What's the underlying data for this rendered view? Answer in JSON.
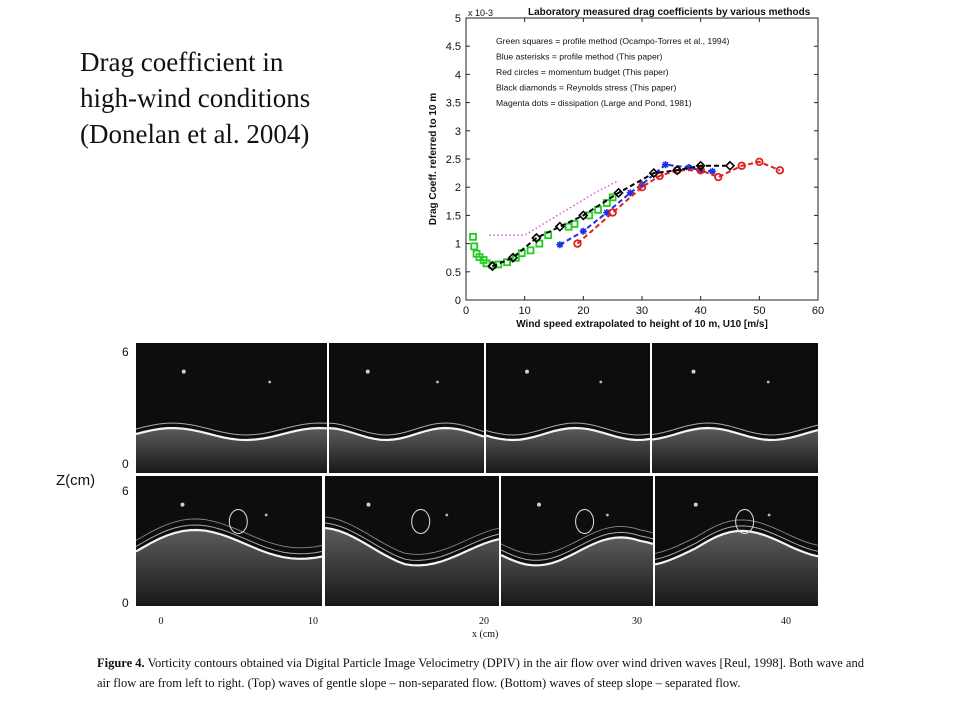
{
  "slide": {
    "title_lines": [
      "Drag coefficient in",
      "high-wind conditions",
      "(Donelan et al. 2004)"
    ]
  },
  "chart_data": {
    "type": "scatter",
    "title": "Laboratory measured drag coefficients by various methods",
    "xlabel": "Wind speed extrapolated to height of 10 m, U10 [m/s]",
    "ylabel": "Drag Coeff. referred to 10 m",
    "y_exponent": "x 10-3",
    "xlim": [
      0,
      60
    ],
    "ylim": [
      0,
      5
    ],
    "x_ticks": [
      0,
      10,
      20,
      30,
      40,
      50,
      60
    ],
    "y_ticks": [
      0,
      0.5,
      1,
      1.5,
      2,
      2.5,
      3,
      3.5,
      4,
      4.5,
      5
    ],
    "grid": false,
    "legend": [
      "Green squares  = profile method  (Ocampo-Torres et al., 1994)",
      "Blue asterisks = profile method  (This paper)",
      "Red circles  = momentum budget  (This paper)",
      "Black diamonds = Reynolds stress  (This paper)",
      "Magenta dots  = dissipation    (Large and Pond, 1981)"
    ],
    "series": [
      {
        "color": "#22cc22",
        "marker": "square",
        "line": false,
        "x": [
          1.2,
          1.4,
          1.8,
          2.3,
          3.0,
          3.5,
          4.5,
          5.5,
          7.0,
          8.5,
          9.5,
          11.0,
          12.5,
          14.0,
          17.5,
          18.5,
          21.0,
          22.5,
          24.0,
          25.0
        ],
        "y": [
          1.12,
          0.95,
          0.82,
          0.76,
          0.71,
          0.65,
          0.62,
          0.63,
          0.67,
          0.75,
          0.83,
          0.88,
          1.0,
          1.15,
          1.3,
          1.35,
          1.5,
          1.6,
          1.72,
          1.82
        ]
      },
      {
        "color": "#1e2ee0",
        "marker": "asterisk",
        "line": true,
        "x": [
          16,
          20,
          24,
          28,
          30,
          34,
          38,
          40,
          42
        ],
        "y": [
          0.98,
          1.22,
          1.55,
          1.9,
          2.05,
          2.4,
          2.35,
          2.3,
          2.28
        ]
      },
      {
        "color": "#e02020",
        "marker": "circle",
        "line": true,
        "x": [
          19,
          25,
          30,
          33,
          36,
          40,
          43,
          47,
          50,
          53.5
        ],
        "y": [
          1.0,
          1.55,
          2.0,
          2.2,
          2.3,
          2.3,
          2.18,
          2.38,
          2.45,
          2.3
        ]
      },
      {
        "color": "#000000",
        "marker": "diamond",
        "line": true,
        "x": [
          4.5,
          8,
          12,
          16,
          20,
          26,
          32,
          36,
          40,
          45
        ],
        "y": [
          0.6,
          0.75,
          1.1,
          1.3,
          1.5,
          1.9,
          2.25,
          2.3,
          2.38,
          2.38
        ]
      },
      {
        "color": "#e060e0",
        "marker": "dot",
        "line": true,
        "x": [
          4,
          6,
          8,
          10,
          14,
          18,
          22,
          26
        ],
        "y": [
          1.15,
          1.15,
          1.15,
          1.15,
          1.4,
          1.65,
          1.9,
          2.12
        ]
      }
    ]
  },
  "figure": {
    "z_label": "Z(cm)",
    "top_row_ticks": [
      "6",
      "0"
    ],
    "bottom_row_ticks": [
      "6",
      "0"
    ],
    "x_ticks": [
      "0",
      "10",
      "20",
      "30",
      "40"
    ],
    "x_label": "x (cm)",
    "caption_bold": "Figure 4.",
    "caption_text": " Vorticity contours obtained via Digital Particle Image Velocimetry (DPIV) in the air flow over wind driven waves [Reul, 1998].  Both wave and air flow are from left to right.  (Top) waves of gentle slope – non-separated flow.  (Bottom) waves of steep slope – separated flow."
  }
}
